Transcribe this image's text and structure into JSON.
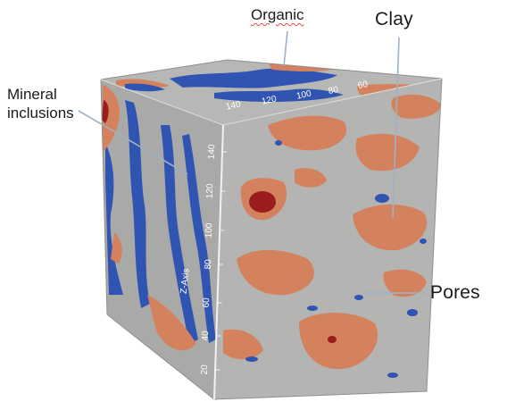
{
  "labels": {
    "organic": "Organic",
    "clay": "Clay",
    "pores": "Pores",
    "mineral": "Mineral\ninclusions"
  },
  "axes": {
    "z_axis_title": "Z-Axis",
    "z_ticks": [
      "20",
      "40",
      "60",
      "80",
      "100",
      "120",
      "140"
    ],
    "top_ticks": [
      "140",
      "120",
      "100",
      "80",
      "60"
    ]
  },
  "colors": {
    "matrix": "#b4b4b2",
    "clay": "#d4825e",
    "organic": "#2f54b2",
    "pore": "#9a1c1c",
    "leader": "#9fb1c4"
  }
}
